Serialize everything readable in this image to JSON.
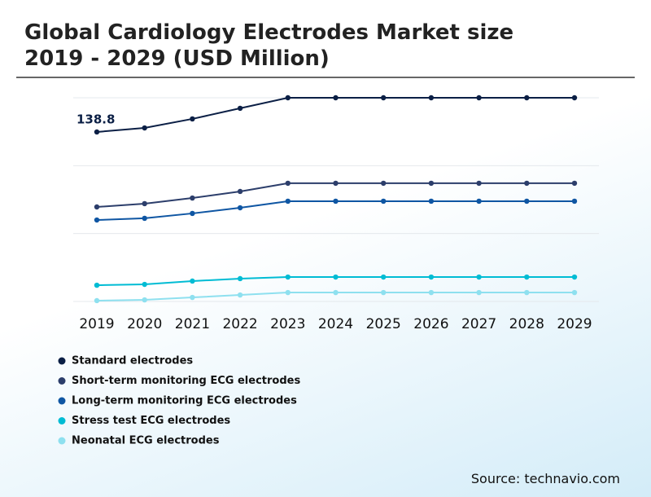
{
  "chart_data": {
    "type": "line",
    "title": "Global Cardiology Electrodes Market size 2019 - 2029 (USD Million)",
    "source": "Source: technavio.com",
    "categories": [
      "2019",
      "2020",
      "2021",
      "2022",
      "2023",
      "2024",
      "2025",
      "2026",
      "2027",
      "2028",
      "2029"
    ],
    "series": [
      {
        "name": "Standard electrodes",
        "color": "#0b1f45",
        "values": [
          138.8,
          142.1,
          149.5,
          158.2,
          166.8,
          166.8,
          166.8,
          166.8,
          166.8,
          166.8,
          166.8
        ]
      },
      {
        "name": "Short-term monitoring ECG electrodes",
        "color": "#2c3e6b",
        "values": [
          77.4,
          80.1,
          84.7,
          90.1,
          96.8,
          96.8,
          96.8,
          96.8,
          96.8,
          96.8,
          96.8
        ]
      },
      {
        "name": "Long-term monitoring ECG electrodes",
        "color": "#0f56a3",
        "values": [
          66.7,
          68.1,
          72.1,
          76.7,
          82.1,
          82.1,
          82.1,
          82.1,
          82.1,
          82.1,
          82.1
        ]
      },
      {
        "name": "Stress test ECG electrodes",
        "color": "#00bcd4",
        "values": [
          13.3,
          14.0,
          16.7,
          18.7,
          20.0,
          20.0,
          20.0,
          20.0,
          20.0,
          20.0,
          20.0
        ]
      },
      {
        "name": "Neonatal ECG electrodes",
        "color": "#8ee0ef",
        "values": [
          0.7,
          1.3,
          3.3,
          5.3,
          7.3,
          7.3,
          7.3,
          7.3,
          7.3,
          7.3,
          7.3
        ]
      }
    ],
    "ylim": [
      0,
      166.8
    ],
    "yticks": [
      0,
      55.6,
      111.2,
      166.8
    ],
    "show_tick_labels": false,
    "grid": true
  }
}
